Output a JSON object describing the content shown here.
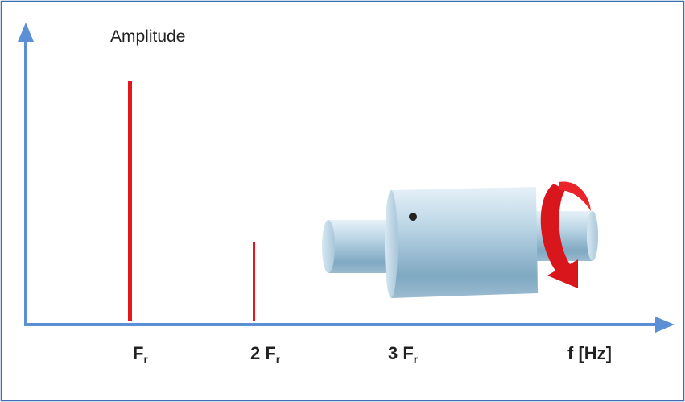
{
  "y_axis_label": "Amplitude",
  "x_axis_label": "f [Hz]",
  "x_labels": [
    {
      "text": "F",
      "sub": "r"
    },
    {
      "text": "2 F",
      "sub": "r"
    },
    {
      "text": "3 F",
      "sub": "r"
    }
  ]
}
